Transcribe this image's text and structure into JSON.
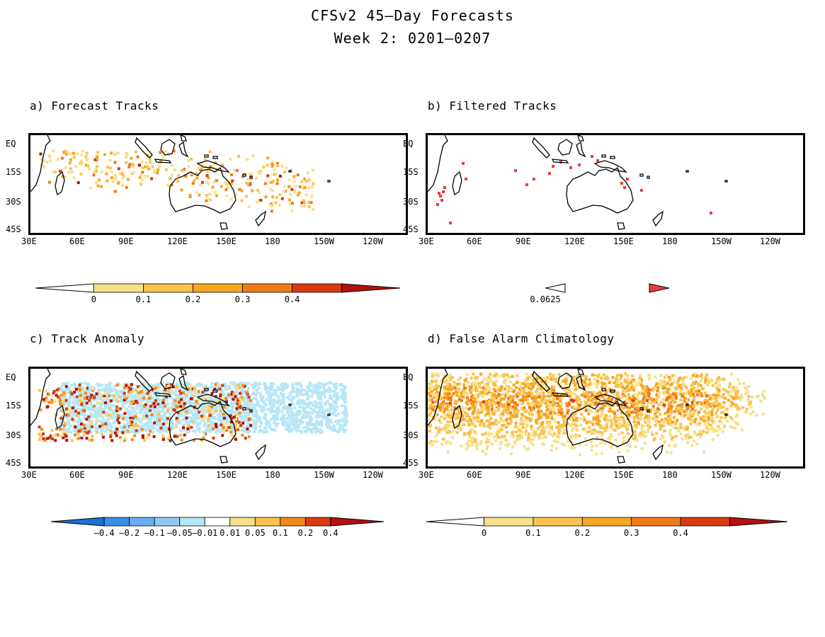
{
  "title": "CFSv2 45–Day Forecasts",
  "subtitle": "Week 2: 0201–0207",
  "lon_labels": [
    "30E",
    "60E",
    "90E",
    "120E",
    "150E",
    "180",
    "150W",
    "120W"
  ],
  "lat_labels": [
    "EQ",
    "15S",
    "30S",
    "45S"
  ],
  "panels": [
    {
      "title": "a) Forecast Tracks",
      "colorbar": {
        "labels": [
          "0",
          "0.1",
          "0.2",
          "0.3",
          "0.4"
        ],
        "colors": [
          "#ffffff",
          "#f7e08b",
          "#f8c34f",
          "#f5a623",
          "#f07c18",
          "#d83a10",
          "#b5110d"
        ]
      }
    },
    {
      "title": "b) Filtered Tracks",
      "colorbar": {
        "labels": [
          "0.0625"
        ],
        "colors": [
          "#ffffff",
          "#ee3b3b"
        ]
      }
    },
    {
      "title": "c) Track Anomaly",
      "colorbar": {
        "labels": [
          "–0.4",
          "–0.2",
          "–0.1",
          "–0.05",
          "–0.01",
          "0.01",
          "0.05",
          "0.1",
          "0.2",
          "0.4"
        ],
        "colors": [
          "#1f6fd6",
          "#3c8fe6",
          "#68aef0",
          "#8fcaf5",
          "#b6e6f7",
          "#ffffff",
          "#f7e08b",
          "#f8c34f",
          "#f08a1c",
          "#d83a10",
          "#b5110d"
        ]
      }
    },
    {
      "title": "d) False Alarm Climatology",
      "colorbar": {
        "labels": [
          "0",
          "0.1",
          "0.2",
          "0.3",
          "0.4"
        ],
        "colors": [
          "#ffffff",
          "#f7e08b",
          "#f8c34f",
          "#f5a623",
          "#f07c18",
          "#d83a10",
          "#b5110d"
        ]
      }
    }
  ]
}
